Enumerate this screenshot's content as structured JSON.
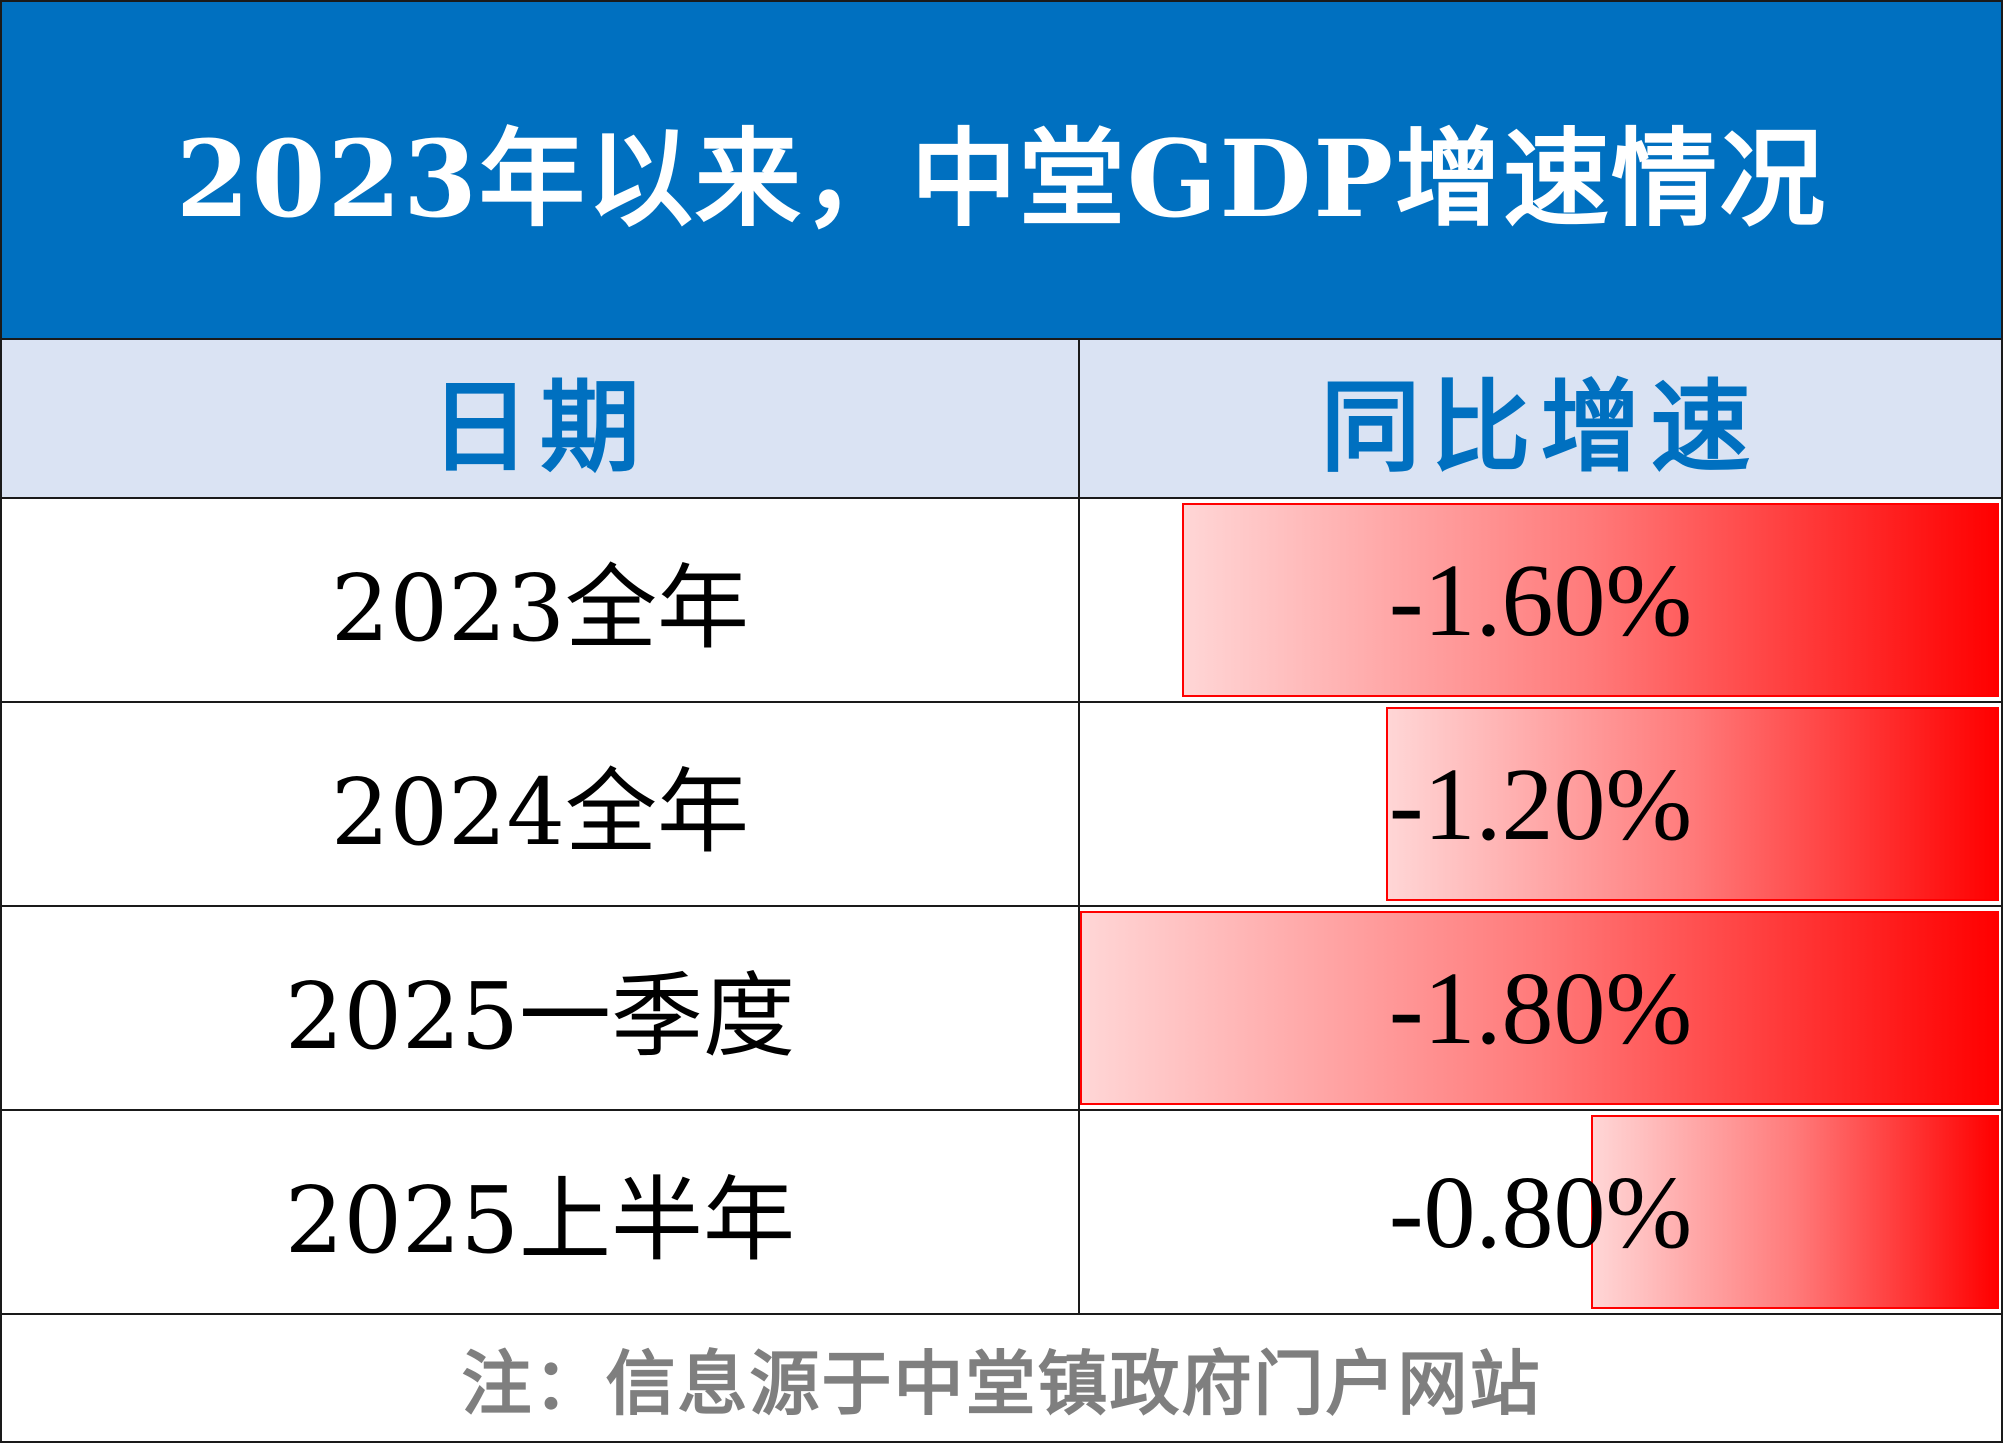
{
  "title": "2023年以来，中堂GDP增速情况",
  "colors": {
    "title_bg": "#0070c0",
    "header_bg": "#dae3f3",
    "header_text": "#0070c0",
    "databar": "#ff0000",
    "footer_text": "#7f7f7f"
  },
  "header": {
    "date": "日期",
    "growth": "同比增速"
  },
  "rows": [
    {
      "date": "2023全年",
      "value_label": "-1.60%"
    },
    {
      "date": "2024全年",
      "value_label": "-1.20%"
    },
    {
      "date": "2025一季度",
      "value_label": "-1.80%"
    },
    {
      "date": "2025上半年",
      "value_label": "-0.80%"
    }
  ],
  "footer": "注：信息源于中堂镇政府门户网站",
  "chart_data": {
    "type": "table",
    "columns": [
      "日期",
      "同比增速"
    ],
    "categories": [
      "2023全年",
      "2024全年",
      "2025一季度",
      "2025上半年"
    ],
    "values": [
      -1.6,
      -1.2,
      -1.8,
      -0.8
    ],
    "unit": "%",
    "bar_direction": "right-to-left",
    "bar_max_abs": 1.8
  }
}
